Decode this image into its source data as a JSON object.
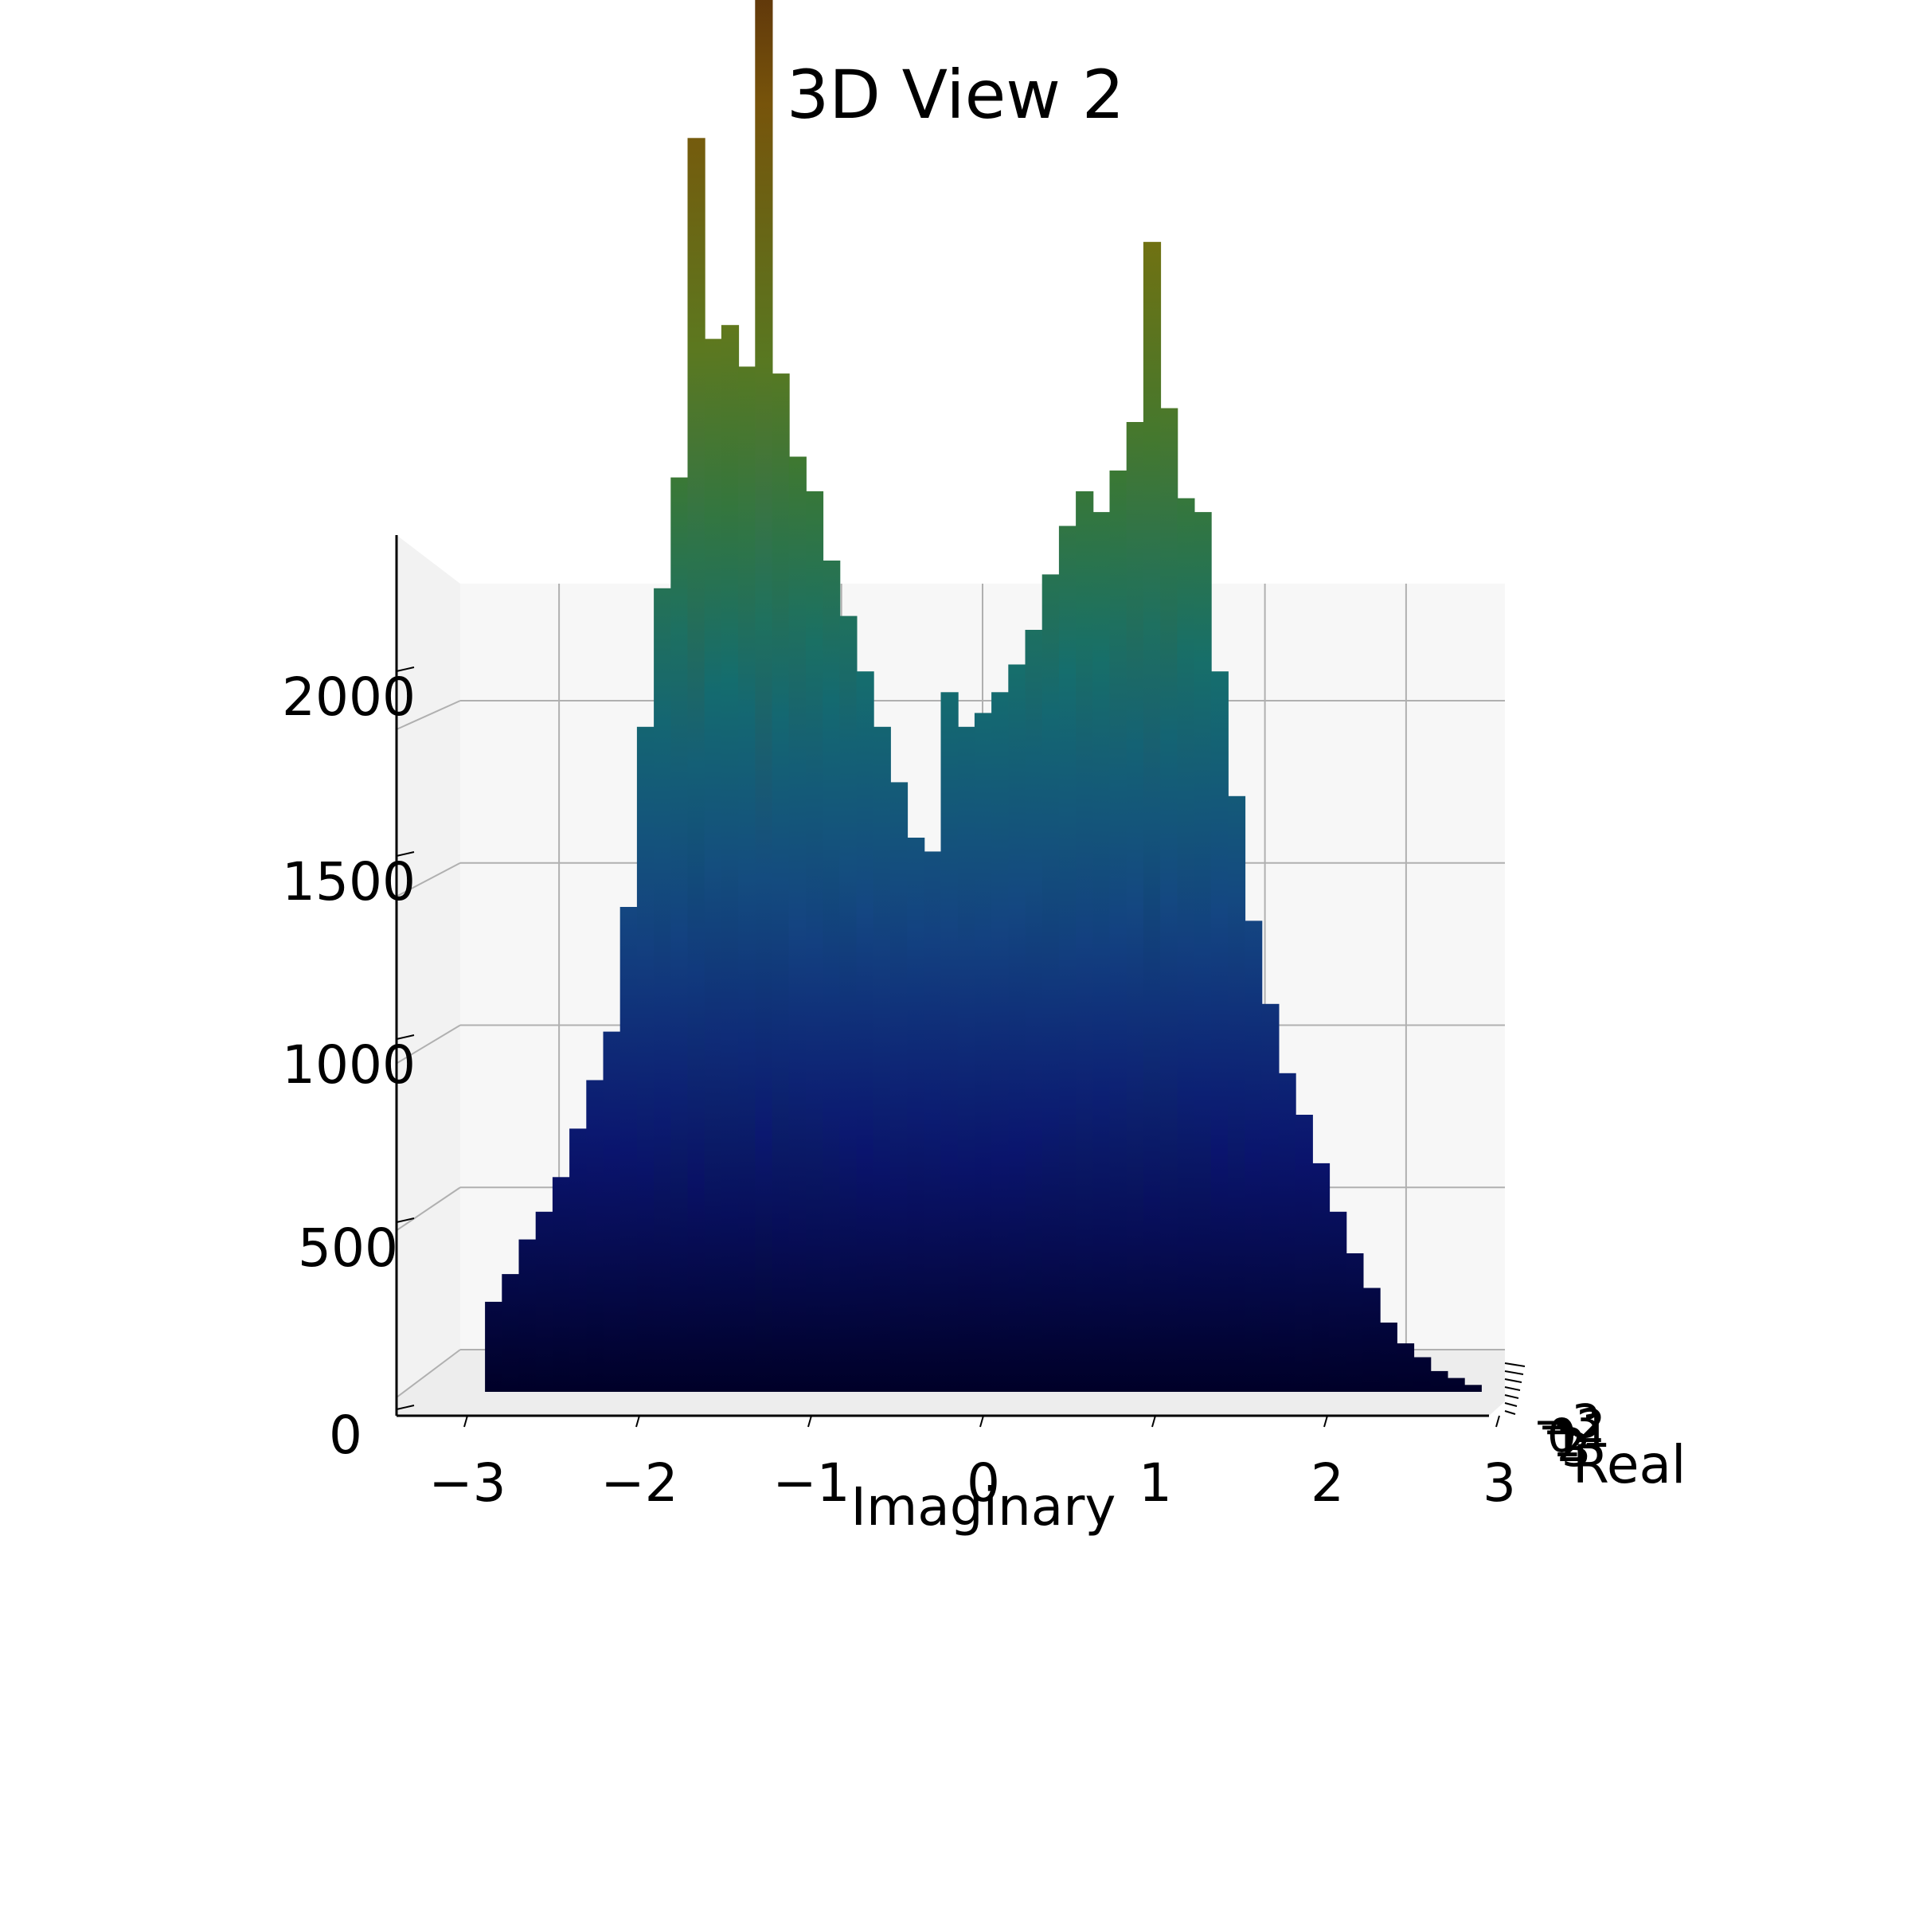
{
  "chart_data": {
    "type": "bar3d",
    "title": "3D View 2",
    "xlabel": "Imaginary",
    "ylabel": "Real",
    "zlabel": "",
    "colormap": "gist_earth",
    "pane_color": "#f7f7f7",
    "grid": true,
    "xlim": [
      -3.3,
      3.3
    ],
    "zlim": [
      0,
      2300
    ],
    "x_ticks": [
      "−3",
      "−2",
      "−1",
      "0",
      "1",
      "2",
      "3"
    ],
    "z_ticks": [
      "0",
      "500",
      "1000",
      "1500",
      "2000"
    ],
    "real_ticks": [
      "−3",
      "−2",
      "−1",
      "0",
      "1",
      "2",
      "3"
    ],
    "series": [
      {
        "x": [
          -2.9,
          -2.8,
          -2.7,
          -2.6,
          -2.5,
          -2.4,
          -2.3,
          -2.2,
          -2.1,
          -2.0,
          -1.9,
          -1.8,
          -1.7,
          -1.6,
          -1.5,
          -1.4,
          -1.3,
          -1.2,
          -1.1,
          -1.0,
          -0.9,
          -0.8,
          -0.7,
          -0.6,
          -0.5,
          -0.4,
          -0.3,
          -0.2,
          -0.1,
          0.0,
          0.1,
          0.2,
          0.3,
          0.4,
          0.5,
          0.6,
          0.7,
          0.8,
          0.9,
          1.0,
          1.1,
          1.2,
          1.3,
          1.4,
          1.5,
          1.6,
          1.7,
          1.8,
          1.9,
          2.0,
          2.1,
          2.2,
          2.3,
          2.4,
          2.5,
          2.6,
          2.7,
          2.8,
          2.9
        ],
        "values": [
          130,
          170,
          220,
          260,
          310,
          380,
          450,
          520,
          700,
          960,
          1160,
          1320,
          1810,
          1520,
          1540,
          1480,
          2230,
          1470,
          1350,
          1300,
          1200,
          1120,
          1040,
          960,
          880,
          800,
          780,
          1010,
          960,
          980,
          1010,
          1050,
          1100,
          1180,
          1250,
          1300,
          1270,
          1330,
          1400,
          1660,
          1420,
          1290,
          1270,
          1040,
          860,
          680,
          560,
          460,
          400,
          330,
          260,
          200,
          150,
          100,
          70,
          50,
          30,
          20,
          10
        ]
      }
    ]
  }
}
